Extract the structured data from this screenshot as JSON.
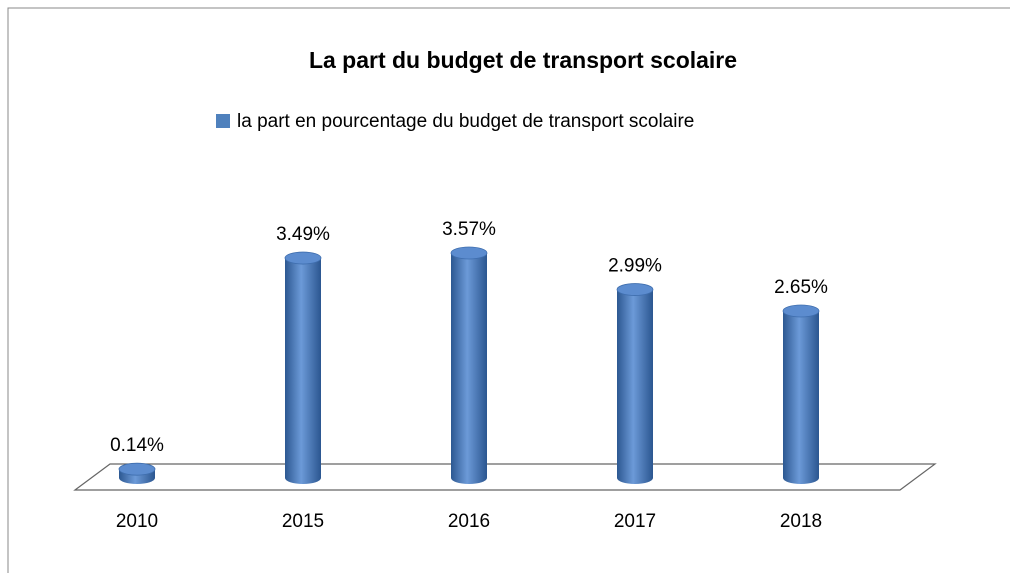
{
  "chart_data": {
    "type": "bar",
    "title": "La part du budget de transport scolaire",
    "categories": [
      "2010",
      "2015",
      "2016",
      "2017",
      "2018"
    ],
    "series": [
      {
        "name": "la part en pourcentage du budget de transport scolaire",
        "color": "#4f81bd",
        "values": [
          0.14,
          3.49,
          3.57,
          2.99,
          2.65
        ],
        "value_labels": [
          "0.14%",
          "3.49%",
          "3.57%",
          "2.99%",
          "2.65%"
        ]
      }
    ],
    "legend": "top",
    "grid": false
  }
}
